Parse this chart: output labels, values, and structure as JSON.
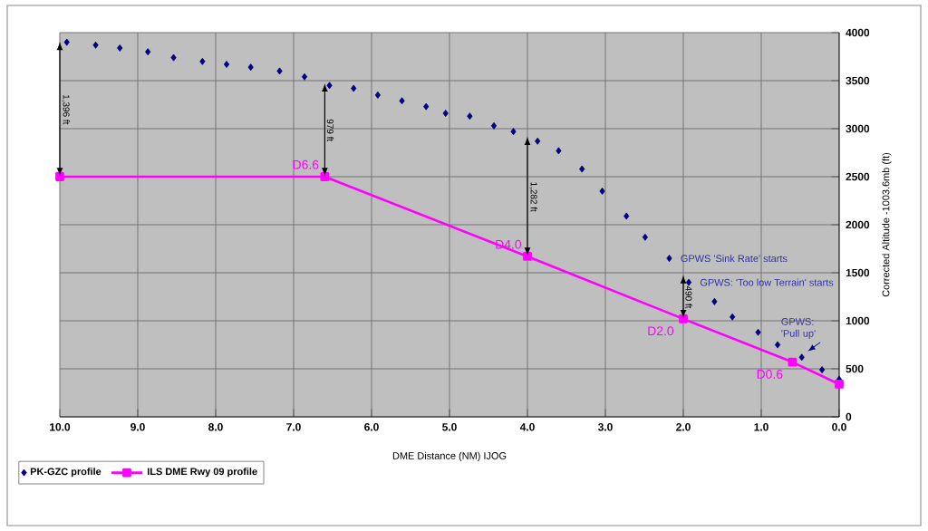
{
  "chart_data": {
    "type": "line",
    "xlabel": "DME Distance (NM) IJOG",
    "ylabel": "Corrected Altitude -1003.6mb (ft)",
    "xlim": [
      10,
      0
    ],
    "ylim": [
      0,
      4000
    ],
    "xticks": [
      {
        "value": 10,
        "label": "10.0"
      },
      {
        "value": 9,
        "label": "9.0"
      },
      {
        "value": 8,
        "label": "8.0"
      },
      {
        "value": 7,
        "label": "7.0"
      },
      {
        "value": 6,
        "label": "6.0"
      },
      {
        "value": 5,
        "label": "5.0"
      },
      {
        "value": 4,
        "label": "4.0"
      },
      {
        "value": 3,
        "label": "3.0"
      },
      {
        "value": 2,
        "label": "2.0"
      },
      {
        "value": 1,
        "label": "1.0"
      },
      {
        "value": 0,
        "label": "0.0"
      }
    ],
    "yticks": [
      0,
      500,
      1000,
      1500,
      2000,
      2500,
      3000,
      3500,
      4000
    ],
    "grid": true,
    "legend": "bottom left",
    "series": [
      {
        "name": "PK-GZC profile",
        "type": "scatter",
        "marker": "diamond",
        "color": "#000080",
        "x": [
          9.91,
          9.54,
          9.23,
          8.87,
          8.54,
          8.17,
          7.86,
          7.55,
          7.18,
          6.86,
          6.54,
          6.23,
          5.92,
          5.61,
          5.3,
          5.05,
          4.74,
          4.43,
          4.18,
          3.87,
          3.6,
          3.3,
          3.04,
          2.73,
          2.49,
          2.18,
          1.93,
          1.6,
          1.37,
          1.04,
          0.79,
          0.48,
          0.22,
          0.0
        ],
        "values": [
          3900,
          3870,
          3840,
          3800,
          3740,
          3700,
          3670,
          3640,
          3600,
          3540,
          3450,
          3420,
          3350,
          3290,
          3230,
          3160,
          3130,
          3030,
          2970,
          2870,
          2770,
          2580,
          2350,
          2090,
          1870,
          1650,
          1400,
          1200,
          1040,
          880,
          750,
          620,
          490,
          390
        ]
      },
      {
        "name": "ILS DME Rwy 09 profile",
        "marker": "square",
        "color": "#ff00ff",
        "x": [
          10.0,
          6.6,
          4.0,
          2.0,
          0.6,
          0.0
        ],
        "values": [
          2500,
          2500,
          1670,
          1020,
          570,
          340
        ]
      }
    ],
    "annotations": [
      "1,396 ft",
      "979 ft",
      "1,282 ft",
      "490 ft",
      {
        "text": "D6.6",
        "x": 6.6,
        "y": 2500
      },
      {
        "text": "D4.0",
        "x": 4.0,
        "y": 1670
      },
      {
        "text": "D2.0",
        "x": 2.0,
        "y": 1020
      },
      {
        "text": "D0.6",
        "x": 0.6,
        "y": 570
      },
      {
        "text": "GPWS 'Sink Rate' starts",
        "x": 2.18,
        "y": 1650
      },
      {
        "text": "GPWS: 'Too low Terrain' starts",
        "x": 1.93,
        "y": 1400
      },
      {
        "text": "GPWS: 'Pull up'",
        "x": 0.48,
        "y": 620
      }
    ]
  }
}
